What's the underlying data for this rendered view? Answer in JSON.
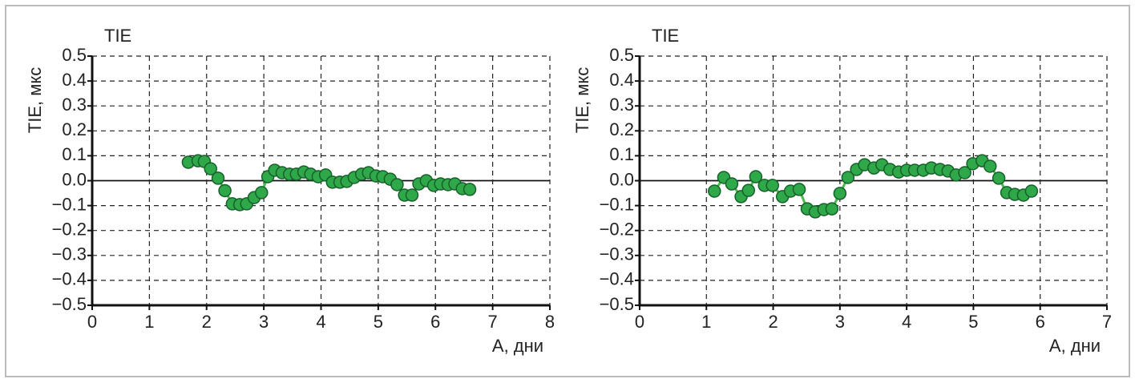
{
  "chart_data": [
    {
      "type": "line",
      "title": "TIE",
      "ylabel": "TIE, мкс",
      "xlabel": "A, дни",
      "x": [
        1.68,
        1.85,
        1.96,
        2.07,
        2.2,
        2.32,
        2.45,
        2.58,
        2.7,
        2.83,
        2.96,
        3.07,
        3.19,
        3.32,
        3.45,
        3.57,
        3.7,
        3.82,
        3.95,
        4.08,
        4.2,
        4.33,
        4.45,
        4.58,
        4.71,
        4.83,
        4.96,
        5.08,
        5.21,
        5.33,
        5.46,
        5.59,
        5.71,
        5.84,
        5.97,
        6.09,
        6.22,
        6.34,
        6.47,
        6.6
      ],
      "values": [
        0.074,
        0.08,
        0.077,
        0.048,
        0.01,
        -0.04,
        -0.093,
        -0.096,
        -0.093,
        -0.068,
        -0.048,
        0.016,
        0.042,
        0.032,
        0.026,
        0.026,
        0.035,
        0.026,
        0.016,
        0.023,
        -0.006,
        -0.006,
        -0.003,
        0.013,
        0.026,
        0.032,
        0.019,
        0.016,
        0.006,
        -0.016,
        -0.058,
        -0.058,
        -0.013,
        0,
        -0.019,
        -0.013,
        -0.016,
        -0.013,
        -0.032,
        -0.035
      ],
      "color": "#4cb84c",
      "marker_color": "#2fa84a",
      "marker_edge_color": "#17602a",
      "xlim": [
        0,
        8
      ],
      "xticks": [
        0,
        1,
        2,
        3,
        4,
        5,
        6,
        7,
        8
      ],
      "ylim": [
        -0.5,
        0.5
      ],
      "yticks": [
        {
          "value": -0.5,
          "label": "−0.5"
        },
        {
          "value": -0.4,
          "label": "−0.4"
        },
        {
          "value": -0.3,
          "label": "−0.3"
        },
        {
          "value": -0.2,
          "label": "−0.2"
        },
        {
          "value": -0.1,
          "label": "−0.1"
        },
        {
          "value": 0,
          "label": "0.0"
        },
        0.1,
        0.2,
        0.3,
        0.4,
        0.5
      ],
      "grid": true,
      "zero_line": true
    },
    {
      "type": "line",
      "title": "TIE",
      "ylabel": "TIE, мкс",
      "xlabel": "A, дни",
      "x": [
        1.12,
        1.26,
        1.38,
        1.52,
        1.63,
        1.74,
        1.87,
        1.99,
        2.14,
        2.26,
        2.39,
        2.51,
        2.63,
        2.76,
        2.88,
        3.0,
        3.12,
        3.25,
        3.37,
        3.51,
        3.63,
        3.75,
        3.88,
        4.0,
        4.12,
        4.25,
        4.37,
        4.5,
        4.62,
        4.74,
        4.87,
        4.99,
        5.13,
        5.25,
        5.38,
        5.5,
        5.62,
        5.75,
        5.87
      ],
      "values": [
        -0.042,
        0.013,
        -0.013,
        -0.064,
        -0.039,
        0.016,
        -0.019,
        -0.019,
        -0.064,
        -0.042,
        -0.035,
        -0.113,
        -0.125,
        -0.116,
        -0.113,
        -0.051,
        0.013,
        0.045,
        0.064,
        0.051,
        0.064,
        0.045,
        0.035,
        0.042,
        0.042,
        0.042,
        0.051,
        0.045,
        0.039,
        0.023,
        0.032,
        0.068,
        0.08,
        0.058,
        0.01,
        -0.048,
        -0.055,
        -0.058,
        -0.042
      ],
      "color": "#4cb84c",
      "marker_color": "#2fa84a",
      "marker_edge_color": "#17602a",
      "xlim": [
        0,
        7
      ],
      "xticks": [
        0,
        1,
        2,
        3,
        4,
        5,
        6,
        7
      ],
      "ylim": [
        -0.5,
        0.5
      ],
      "yticks": [
        {
          "value": -0.5,
          "label": "−0.5"
        },
        {
          "value": -0.4,
          "label": "−0.4"
        },
        {
          "value": -0.3,
          "label": "−0.3"
        },
        {
          "value": -0.2,
          "label": "−0.2"
        },
        {
          "value": -0.1,
          "label": "−0.1"
        },
        {
          "value": 0,
          "label": "0.0"
        },
        0.1,
        0.2,
        0.3,
        0.4,
        0.5
      ],
      "grid": true,
      "zero_line": true
    }
  ]
}
